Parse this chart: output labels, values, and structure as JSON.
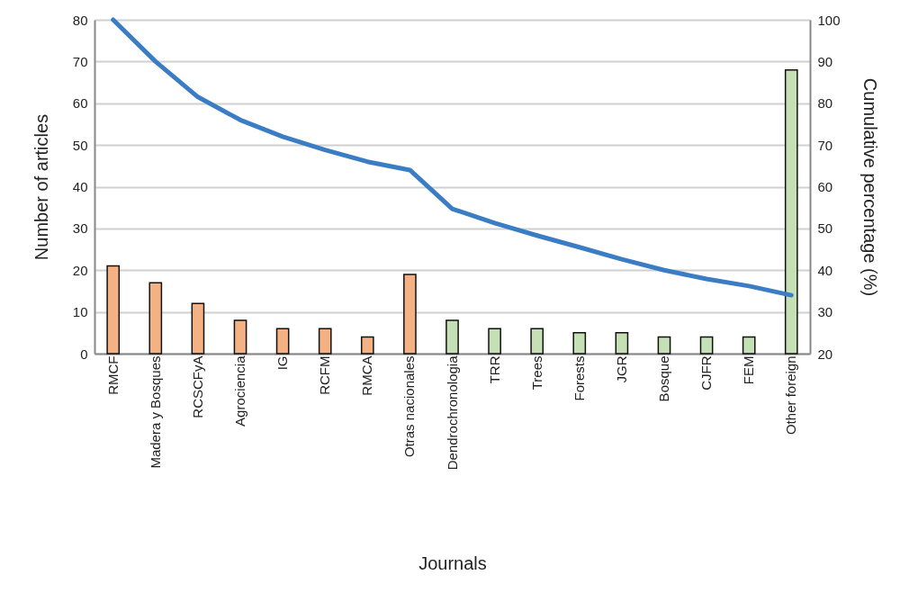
{
  "chart_data": {
    "type": "bar",
    "xlabel": "Journals",
    "ylabel": "Number of articles",
    "y2label": "Cumulative percentage (%)",
    "categories": [
      "RMCF",
      "Madera y Bosques",
      "RCSCFyA",
      "Agrociencia",
      "IG",
      "RCFM",
      "RMCA",
      "Otras nacionales",
      "Dendrochronologia",
      "TRR",
      "Trees",
      "Forests",
      "JGR",
      "Bosque",
      "CJFR",
      "FEM",
      "Other foreign"
    ],
    "series": [
      {
        "values": [
          21,
          17,
          12,
          8,
          6,
          6,
          4,
          19,
          8,
          6,
          6,
          5,
          5,
          4,
          4,
          4,
          68
        ],
        "colors": [
          "#f4b183",
          "#f4b183",
          "#f4b183",
          "#f4b183",
          "#f4b183",
          "#f4b183",
          "#f4b183",
          "#f4b183",
          "#c5e0b4",
          "#c5e0b4",
          "#c5e0b4",
          "#c5e0b4",
          "#c5e0b4",
          "#c5e0b4",
          "#c5e0b4",
          "#c5e0b4",
          "#c5e0b4"
        ]
      },
      {
        "type": "line",
        "axis": "y2",
        "color": "#3a7dc4",
        "values": [
          100,
          90,
          81.5,
          76,
          72,
          68.8,
          66,
          64,
          54.7,
          51.3,
          48.3,
          45.5,
          42.6,
          40,
          37.9,
          36.2,
          34
        ]
      }
    ],
    "ylim": [
      0,
      80
    ],
    "yticks": [
      0,
      10,
      20,
      30,
      40,
      50,
      60,
      70,
      80
    ],
    "y2lim": [
      20,
      100
    ],
    "y2ticks": [
      20,
      30,
      40,
      50,
      60,
      70,
      80,
      90,
      100
    ],
    "grid": "y",
    "marker": "none",
    "line_style": "solid"
  }
}
